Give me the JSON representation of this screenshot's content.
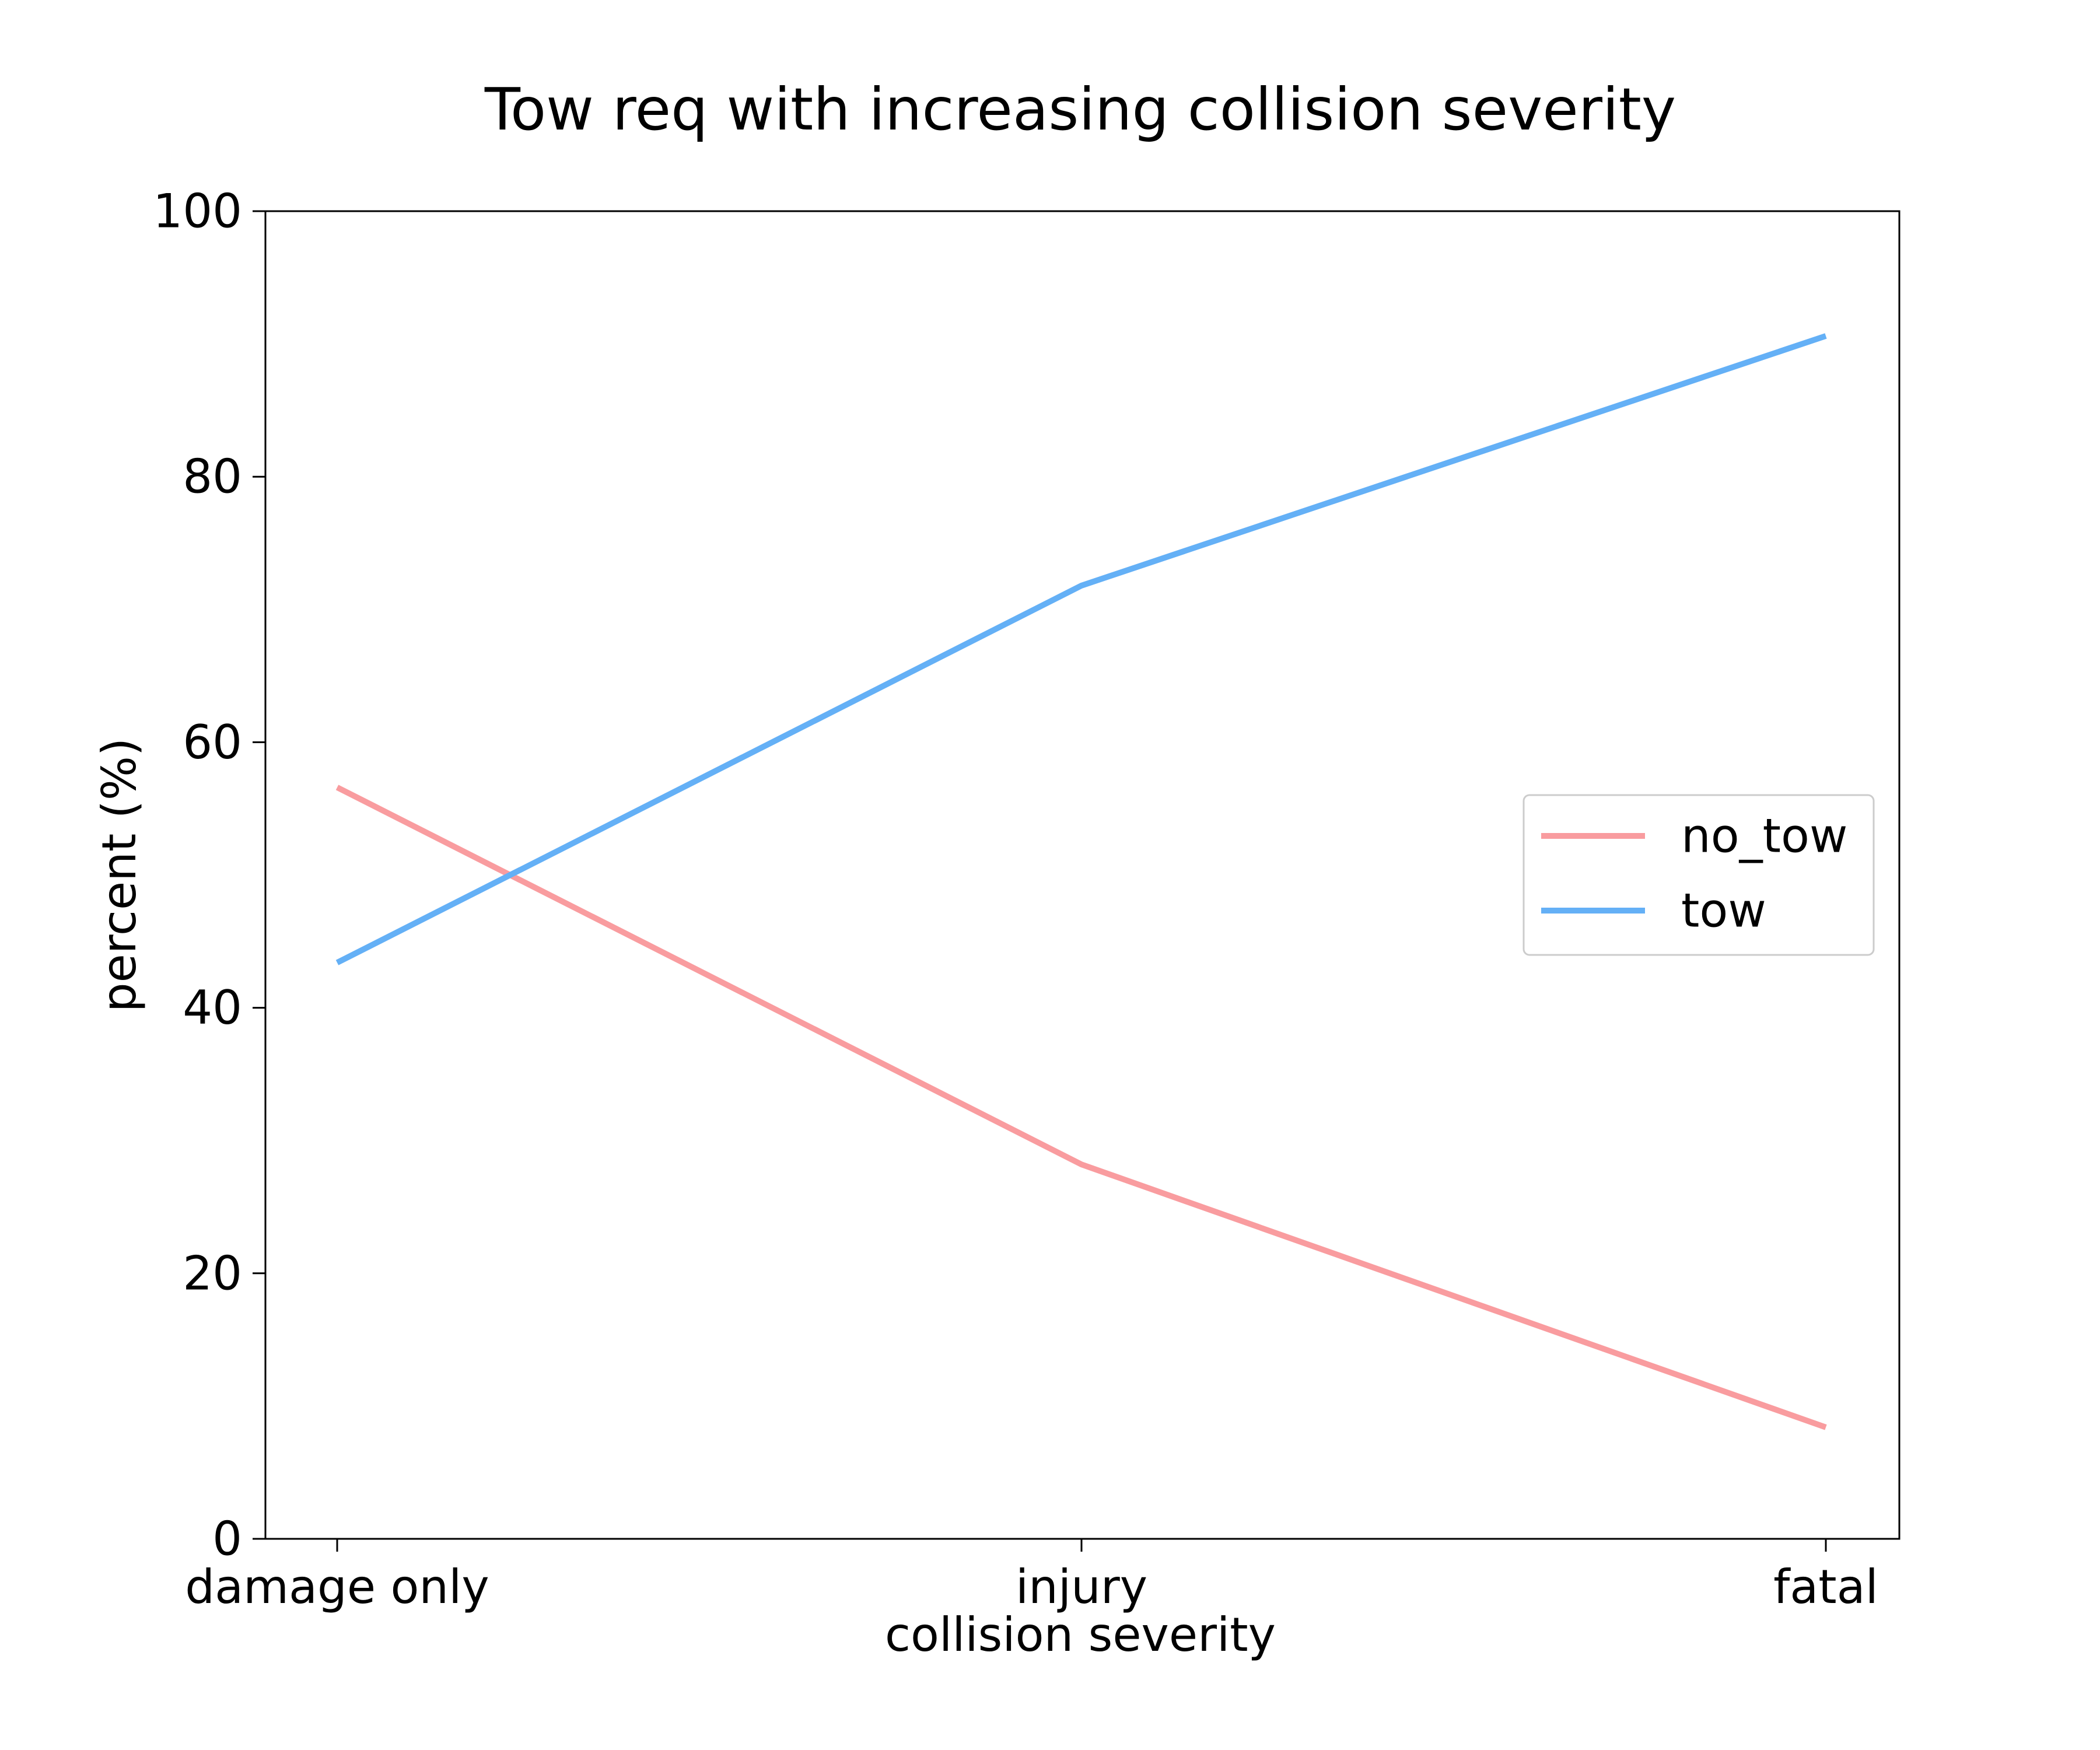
{
  "chart_data": {
    "type": "line",
    "title": "Tow req with increasing collision severity",
    "xlabel": "collision severity",
    "ylabel": "percent (%)",
    "categories": [
      "damage only",
      "injury",
      "fatal"
    ],
    "series": [
      {
        "name": "no_tow",
        "values": [
          56.6,
          28.2,
          8.4
        ],
        "color": "#f99c9f"
      },
      {
        "name": "tow",
        "values": [
          43.4,
          71.8,
          90.6
        ],
        "color": "#64b0f6"
      }
    ],
    "ylim": [
      0,
      100
    ],
    "yticks": [
      "0",
      "20",
      "40",
      "60",
      "80",
      "100"
    ],
    "grid": false,
    "legend_position": "center-right"
  }
}
